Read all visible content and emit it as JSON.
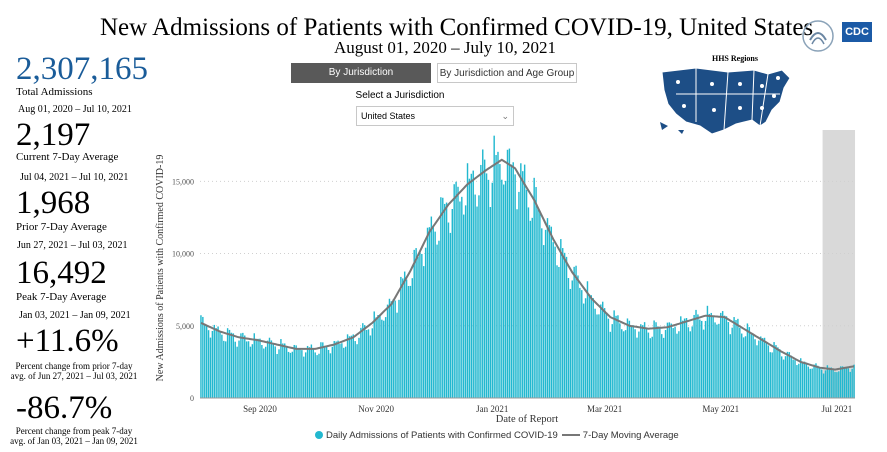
{
  "header": {
    "title": "New Admissions of Patients with Confirmed COVID-19, United States",
    "subtitle": "August 01, 2020 – July 10, 2021",
    "logo_text": "CDC"
  },
  "kpis": {
    "total": {
      "value": "2,307,165",
      "label": "Total Admissions",
      "dates": "Aug 01, 2020 – Jul 10, 2021"
    },
    "current": {
      "value": "2,197",
      "label": "Current 7-Day Average",
      "dates": "Jul 04, 2021 – Jul 10, 2021"
    },
    "prior": {
      "value": "1,968",
      "label": "Prior 7-Day Average",
      "dates": "Jun 27, 2021 – Jul 03, 2021"
    },
    "peak": {
      "value": "16,492",
      "label": "Peak 7-Day Average",
      "dates": "Jan 03, 2021 – Jan 09, 2021"
    },
    "pct_prior": {
      "value": "+11.6%",
      "note1": "Percent change from prior 7-day",
      "note2": "avg. of Jun 27, 2021 – Jul 03, 2021"
    },
    "pct_peak": {
      "value": "-86.7%",
      "note1": "Percent change from peak 7-day",
      "note2": "avg. of Jan 03, 2021 – Jan 09, 2021"
    }
  },
  "controls": {
    "tab_jurisdiction": "By Jurisdiction",
    "tab_age": "By Jurisdiction and Age Group",
    "select_label": "Select a Jurisdiction",
    "select_value": "United States"
  },
  "map": {
    "title": "HHS Regions"
  },
  "colors": {
    "bar": "#22b8cf",
    "line": "#777777",
    "accent": "#1a5c99",
    "highlight": "#d9d9d9"
  },
  "chart_data": {
    "type": "bar",
    "title": "New Admissions of Patients with Confirmed COVID-19, United States",
    "xlabel": "Date of Report",
    "ylabel": "New Admissions of Patients with Confirmed COVID-19",
    "ylim": [
      0,
      18000
    ],
    "yticks": [
      0,
      5000,
      10000,
      15000
    ],
    "ytick_labels": [
      "0",
      "5,000",
      "10,000",
      "15,000"
    ],
    "x_start": "2020-08-01",
    "x_end": "2021-07-10",
    "xticks": [
      {
        "label": "Sep 2020",
        "day": 31
      },
      {
        "label": "Nov 2020",
        "day": 92
      },
      {
        "label": "Jan 2021",
        "day": 153
      },
      {
        "label": "Mar 2021",
        "day": 212
      },
      {
        "label": "May 2021",
        "day": 273
      },
      {
        "label": "Jul 2021",
        "day": 334
      }
    ],
    "highlight_range_days": [
      327,
      343
    ],
    "series": [
      {
        "name": "Daily Admissions of Patients with Confirmed COVID-19",
        "type": "bar"
      },
      {
        "name": "7-Day Moving Average",
        "type": "line"
      }
    ],
    "moving_average_anchors": [
      {
        "day": 0,
        "value": 5200
      },
      {
        "day": 10,
        "value": 4600
      },
      {
        "day": 20,
        "value": 4200
      },
      {
        "day": 30,
        "value": 4000
      },
      {
        "day": 40,
        "value": 3700
      },
      {
        "day": 50,
        "value": 3400
      },
      {
        "day": 60,
        "value": 3400
      },
      {
        "day": 70,
        "value": 3700
      },
      {
        "day": 80,
        "value": 4200
      },
      {
        "day": 90,
        "value": 5200
      },
      {
        "day": 100,
        "value": 6500
      },
      {
        "day": 110,
        "value": 8800
      },
      {
        "day": 120,
        "value": 11500
      },
      {
        "day": 130,
        "value": 13400
      },
      {
        "day": 140,
        "value": 14800
      },
      {
        "day": 150,
        "value": 15800
      },
      {
        "day": 158,
        "value": 16492
      },
      {
        "day": 165,
        "value": 15900
      },
      {
        "day": 175,
        "value": 13700
      },
      {
        "day": 185,
        "value": 11000
      },
      {
        "day": 195,
        "value": 8700
      },
      {
        "day": 205,
        "value": 6900
      },
      {
        "day": 215,
        "value": 5600
      },
      {
        "day": 225,
        "value": 5000
      },
      {
        "day": 235,
        "value": 4800
      },
      {
        "day": 245,
        "value": 4900
      },
      {
        "day": 255,
        "value": 5300
      },
      {
        "day": 265,
        "value": 5700
      },
      {
        "day": 275,
        "value": 5600
      },
      {
        "day": 285,
        "value": 4800
      },
      {
        "day": 295,
        "value": 4000
      },
      {
        "day": 305,
        "value": 3200
      },
      {
        "day": 315,
        "value": 2500
      },
      {
        "day": 325,
        "value": 2100
      },
      {
        "day": 333,
        "value": 1968
      },
      {
        "day": 343,
        "value": 2197
      }
    ]
  }
}
